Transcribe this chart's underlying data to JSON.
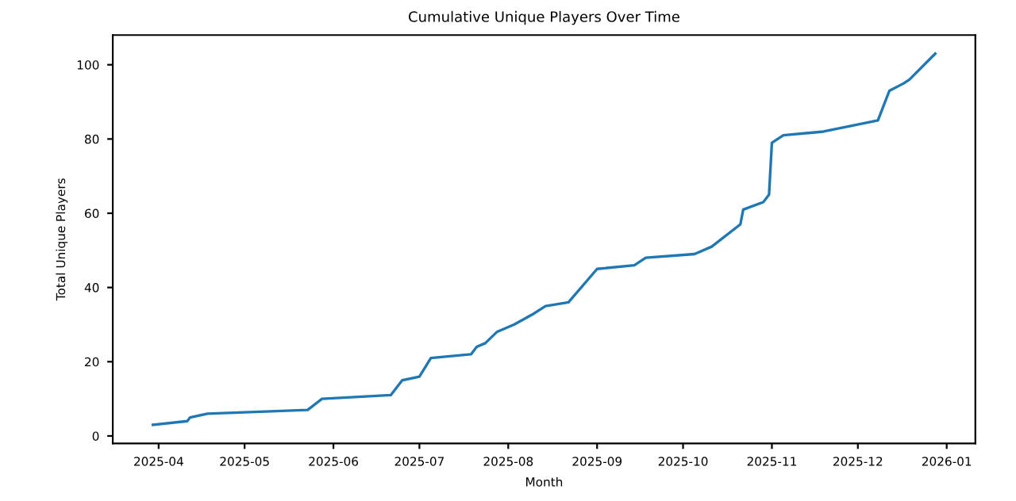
{
  "chart_data": {
    "type": "line",
    "title": "Cumulative Unique Players Over Time",
    "xlabel": "Month",
    "ylabel": "Total Unique Players",
    "x": [
      "2025-03-30",
      "2025-04-11",
      "2025-04-12",
      "2025-04-18",
      "2025-05-23",
      "2025-05-28",
      "2025-06-21",
      "2025-06-25",
      "2025-07-01",
      "2025-07-05",
      "2025-07-19",
      "2025-07-21",
      "2025-07-24",
      "2025-07-28",
      "2025-08-03",
      "2025-08-10",
      "2025-08-14",
      "2025-08-22",
      "2025-09-01",
      "2025-09-14",
      "2025-09-18",
      "2025-10-05",
      "2025-10-11",
      "2025-10-21",
      "2025-10-22",
      "2025-10-29",
      "2025-10-31",
      "2025-11-01",
      "2025-11-05",
      "2025-11-19",
      "2025-12-08",
      "2025-12-10",
      "2025-12-12",
      "2025-12-17",
      "2025-12-19",
      "2025-12-28"
    ],
    "series": [
      {
        "color": "#1f77b4",
        "values": [
          3,
          4,
          5,
          6,
          7,
          10,
          11,
          15,
          16,
          21,
          22,
          24,
          25,
          28,
          30,
          33,
          35,
          36,
          45,
          46,
          48,
          49,
          51,
          57,
          61,
          63,
          65,
          79,
          81,
          82,
          85,
          89,
          93,
          95,
          96,
          103
        ]
      }
    ],
    "xlim": [
      "2025-03-16",
      "2026-01-11"
    ],
    "ylim": [
      -2,
      108
    ],
    "xticks": [
      {
        "value": "2025-04-01",
        "label": "2025-04"
      },
      {
        "value": "2025-05-01",
        "label": "2025-05"
      },
      {
        "value": "2025-06-01",
        "label": "2025-06"
      },
      {
        "value": "2025-07-01",
        "label": "2025-07"
      },
      {
        "value": "2025-08-01",
        "label": "2025-08"
      },
      {
        "value": "2025-09-01",
        "label": "2025-09"
      },
      {
        "value": "2025-10-01",
        "label": "2025-10"
      },
      {
        "value": "2025-11-01",
        "label": "2025-11"
      },
      {
        "value": "2025-12-01",
        "label": "2025-12"
      },
      {
        "value": "2026-01-01",
        "label": "2026-01"
      }
    ],
    "yticks": [
      0,
      20,
      40,
      60,
      80,
      100
    ],
    "grid": false,
    "legend": false
  }
}
